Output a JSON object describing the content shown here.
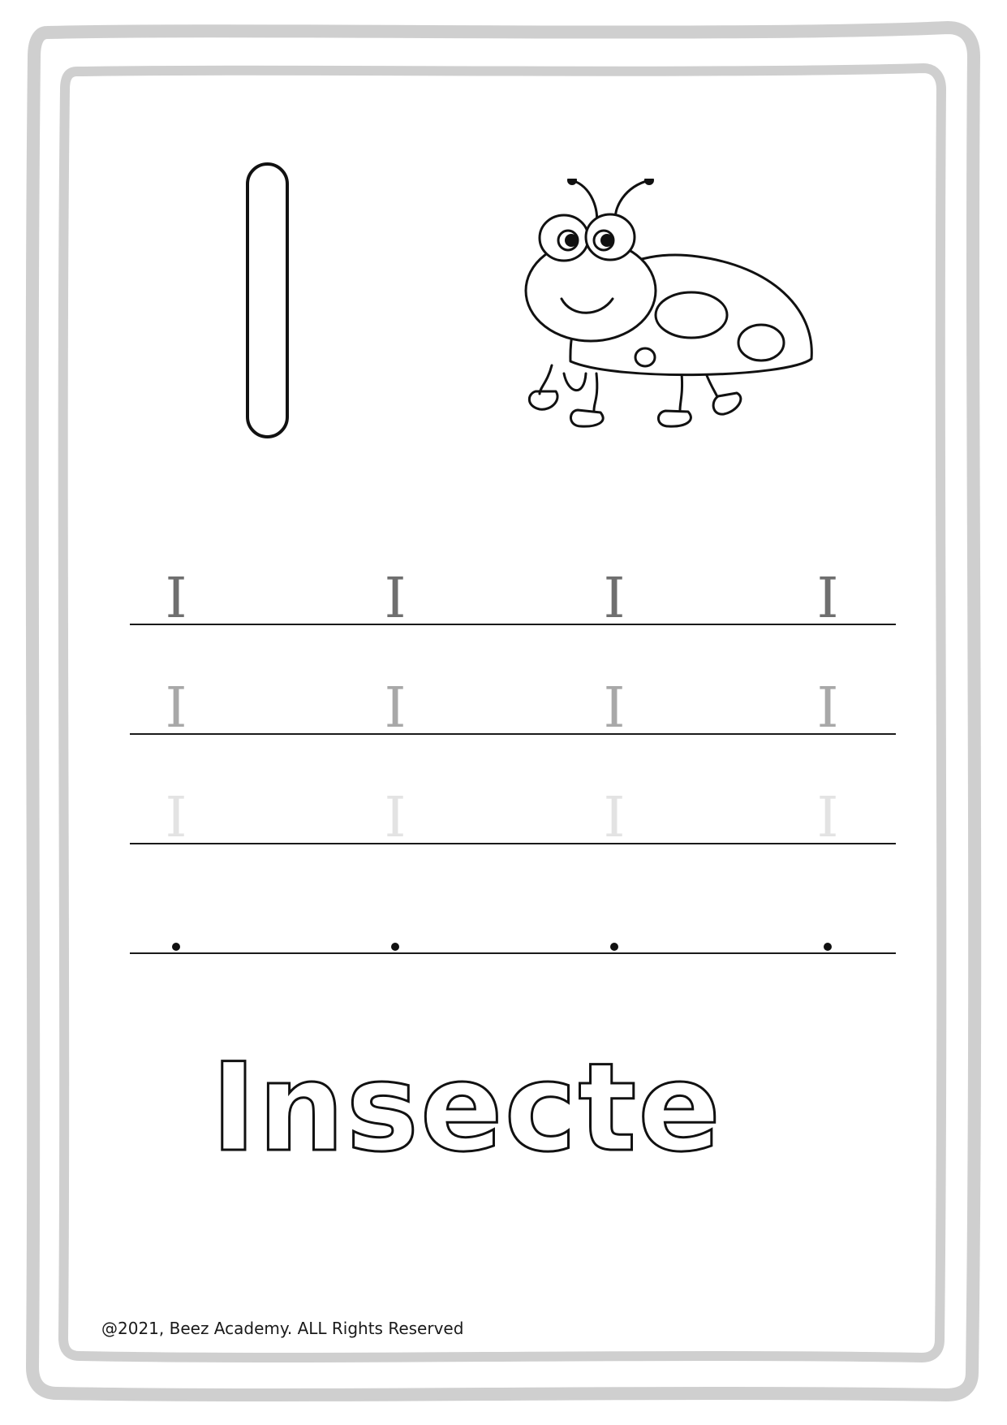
{
  "worksheet": {
    "big_letter": "I",
    "illustration": "ladybug-insect",
    "trace_rows": [
      {
        "letters": [
          "I",
          "I",
          "I",
          "I"
        ],
        "shade": "#6f6f6f",
        "style": "solid"
      },
      {
        "letters": [
          "I",
          "I",
          "I",
          "I"
        ],
        "shade": "#a8a8a8",
        "style": "solid"
      },
      {
        "letters": [
          "I",
          "I",
          "I",
          "I"
        ],
        "shade": "#e3e3e3",
        "style": "solid"
      },
      {
        "letters": [
          "",
          "",
          "",
          ""
        ],
        "shade": "#111111",
        "style": "dot"
      }
    ],
    "word": "Insecte",
    "footer": "@2021, Beez Academy. ALL Rights Reserved"
  },
  "colors": {
    "frame": "#cfcfcf",
    "outline": "#111111"
  }
}
